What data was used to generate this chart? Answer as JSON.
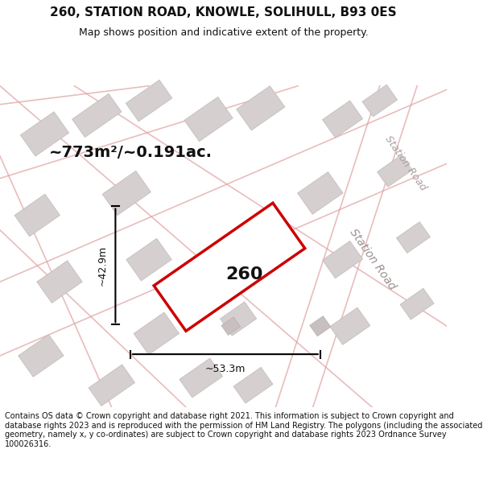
{
  "title": "260, STATION ROAD, KNOWLE, SOLIHULL, B93 0ES",
  "subtitle": "Map shows position and indicative extent of the property.",
  "footer": "Contains OS data © Crown copyright and database right 2021. This information is subject to Crown copyright and database rights 2023 and is reproduced with the permission of HM Land Registry. The polygons (including the associated geometry, namely x, y co-ordinates) are subject to Crown copyright and database rights 2023 Ordnance Survey 100026316.",
  "area_label": "~773m²/~0.191ac.",
  "property_number": "260",
  "dim_width": "~53.3m",
  "dim_height": "~42.9m",
  "road_label": "Station Road",
  "bg_color": "#f5f0f0",
  "map_bg": "#f0eeee",
  "plot_color": "#cc0000",
  "plot_fill": "#ffffff",
  "block_color": "#d8d0d0",
  "road_line_color": "#e8a0a0",
  "title_fontsize": 11,
  "subtitle_fontsize": 9,
  "footer_fontsize": 7.5
}
